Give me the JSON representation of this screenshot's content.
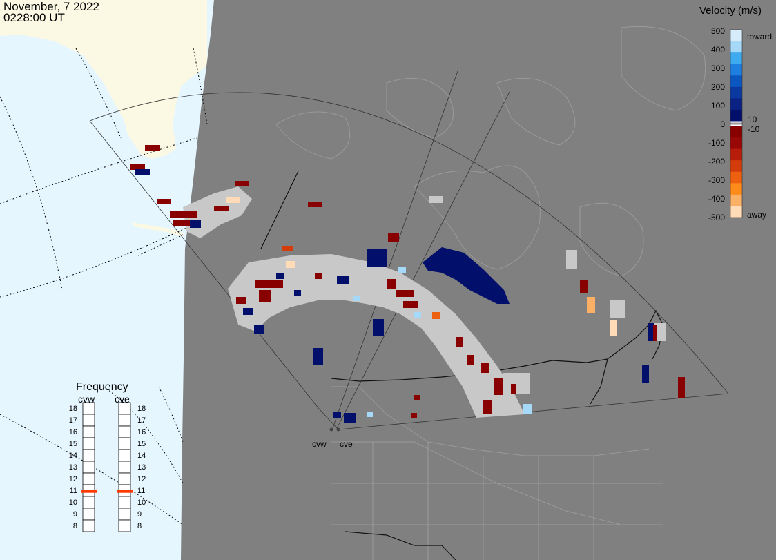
{
  "header": {
    "date": "November, 7 2022",
    "time": "0228:00 UT"
  },
  "colorbar": {
    "title": "Velocity (m/s)",
    "ticks": [
      "500",
      "400",
      "300",
      "200",
      "100",
      "0",
      "-100",
      "-200",
      "-300",
      "-400",
      "-500"
    ],
    "label_toward": "toward",
    "label_away": "away",
    "label_pos": "10",
    "label_neg": "-10",
    "colors": [
      "#d6ecfb",
      "#a6d9f7",
      "#3eaaf0",
      "#1f7fe0",
      "#0b57c2",
      "#0a3aa0",
      "#0a2283",
      "#020f6b",
      "#880000",
      "#9a0707",
      "#b81c0a",
      "#d43d0b",
      "#ec6010",
      "#ff8b1a",
      "#fbb066",
      "#ffdcb7"
    ]
  },
  "frequency": {
    "title": "Frequency",
    "radars": [
      {
        "name": "cvw",
        "value": 10.9
      },
      {
        "name": "cve",
        "value": 10.9
      }
    ],
    "scale": [
      "18",
      "17",
      "16",
      "15",
      "14",
      "13",
      "12",
      "11",
      "10",
      "9",
      "8"
    ]
  },
  "radars": [
    {
      "name": "cvw"
    },
    {
      "name": "cve"
    }
  ],
  "style": {
    "land_color": "#808080",
    "ocean_color": "#e6f6ff",
    "ice_color": "#fbf9e3",
    "gs_color": "#c8c8c8",
    "marker_color": "#ff3a00"
  }
}
